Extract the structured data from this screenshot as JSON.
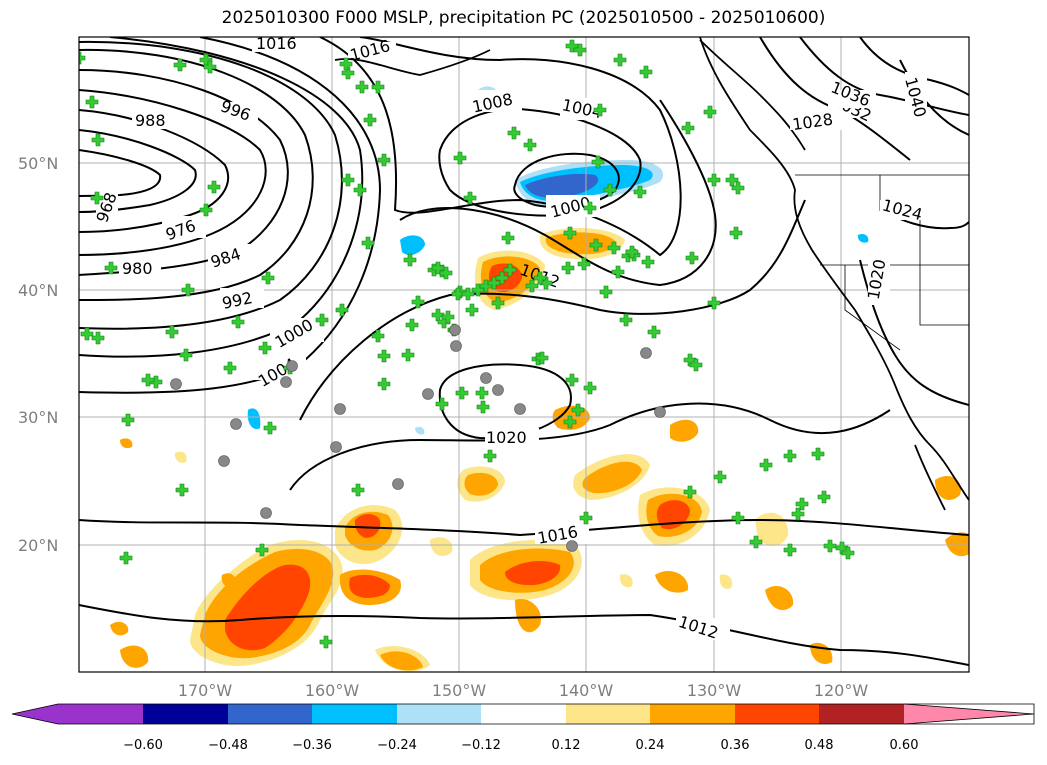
{
  "title": "2025010300 F000 MSLP, precipitation PC (2025010500 - 2025010600)",
  "latitude_labels": [
    "50°N",
    "40°N",
    "30°N",
    "20°N"
  ],
  "longitude_labels": [
    "170°W",
    "160°W",
    "150°W",
    "140°W",
    "130°W",
    "120°W"
  ],
  "isobar_labels": {
    "1016": "1016",
    "988": "988",
    "996": "996",
    "968": "968",
    "976": "976",
    "980": "980",
    "984": "984",
    "992": "992",
    "1000": "1000",
    "1004": "1004",
    "1008": "1008",
    "1012": "1012",
    "1020": "1020",
    "1024": "1024",
    "1028": "1028",
    "1032": "1032",
    "1036": "1036",
    "1040": "1040"
  },
  "colorbar": {
    "ticks": [
      "−0.60",
      "−0.48",
      "−0.36",
      "−0.24",
      "−0.12",
      "0.12",
      "0.24",
      "0.36",
      "0.48",
      "0.60"
    ],
    "colors": [
      "#9933cc",
      "#000099",
      "#3366cc",
      "#00bfff",
      "#aee0f8",
      "#ffffff",
      "#fde68a",
      "#ffa500",
      "#ff4500",
      "#b22222",
      "#ff88aa"
    ]
  },
  "colors": {
    "observation_marker": "#33cc33",
    "station_marker": "#888888",
    "gridline": "#b0b0b0",
    "isobar": "#000000"
  }
}
